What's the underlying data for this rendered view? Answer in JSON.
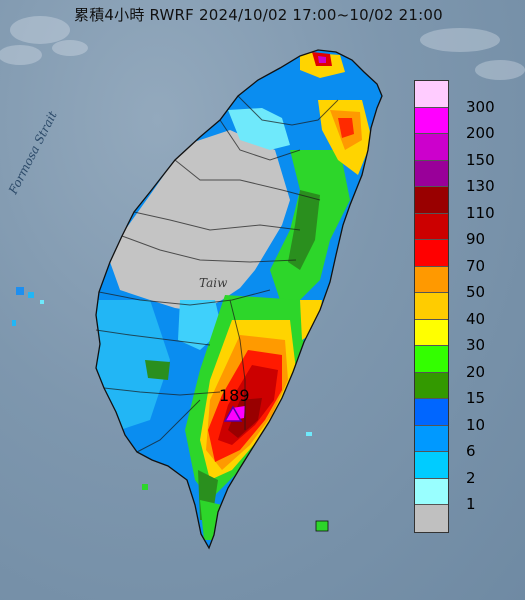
{
  "title": "累積4小時 RWRF 2024/10/02 17:00~10/02 21:00",
  "strait_label": "Formosa Strait",
  "place_label": "Taiw",
  "max_value": "189",
  "legend": [
    {
      "label": "300",
      "color": "#ffccff"
    },
    {
      "label": "200",
      "color": "#ff00ff"
    },
    {
      "label": "150",
      "color": "#cc00cc"
    },
    {
      "label": "130",
      "color": "#990099"
    },
    {
      "label": "110",
      "color": "#990000"
    },
    {
      "label": "90",
      "color": "#cc0000"
    },
    {
      "label": "70",
      "color": "#ff0000"
    },
    {
      "label": "50",
      "color": "#ff9900"
    },
    {
      "label": "40",
      "color": "#ffcc00"
    },
    {
      "label": "30",
      "color": "#ffff00"
    },
    {
      "label": "20",
      "color": "#33ff00"
    },
    {
      "label": "15",
      "color": "#339900"
    },
    {
      "label": "10",
      "color": "#0066ff"
    },
    {
      "label": "6",
      "color": "#0099ff"
    },
    {
      "label": "2",
      "color": "#00ccff"
    },
    {
      "label": "1",
      "color": "#99ffff"
    },
    {
      "label": "",
      "color": "#c0c0c0"
    }
  ]
}
